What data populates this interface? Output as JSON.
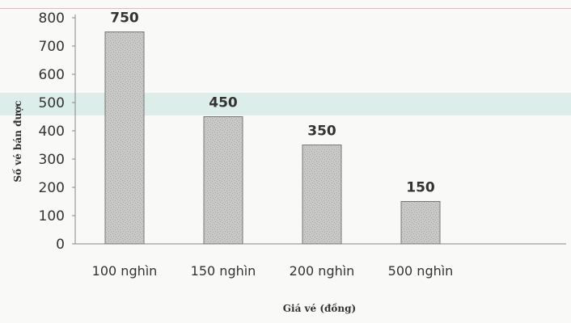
{
  "chart_data": {
    "type": "bar",
    "categories": [
      "100 nghìn",
      "150 nghìn",
      "200 nghìn",
      "500 nghìn"
    ],
    "values": [
      750,
      450,
      350,
      150
    ],
    "data_labels": [
      "750",
      "450",
      "350",
      "150"
    ],
    "xlabel": "Giá vé (đồng)",
    "ylabel": "Số vé bán được",
    "ylim": [
      0,
      800
    ],
    "yticks": [
      0,
      100,
      200,
      300,
      400,
      500,
      600,
      700,
      800
    ],
    "grid": false,
    "legend": "none",
    "colors": {
      "bar_fill": "#c8c8c6",
      "bar_stroke": "#777777",
      "text": "#333333",
      "axis": "#888888"
    }
  }
}
